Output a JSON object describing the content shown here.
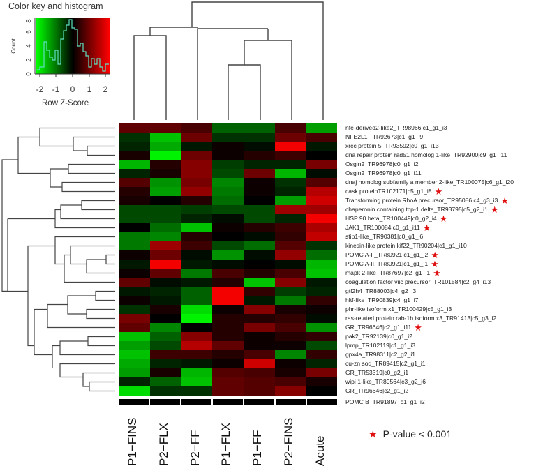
{
  "chart_data": {
    "type": "heatmap",
    "title": "",
    "color_key": {
      "title": "Color key and histogram",
      "xlabel": "Row Z-Score",
      "ylabel": "Count",
      "x_ticks": [
        "-2",
        "-1",
        "0",
        "1",
        "2"
      ],
      "y_ticks": [
        "0",
        "2",
        "4",
        "6",
        "8"
      ],
      "low_color": "#00ff00",
      "mid_color": "#000000",
      "high_color": "#ff0000",
      "range": [
        -2.2,
        2.2
      ]
    },
    "columns": [
      "P1−FINS",
      "P2−FLX",
      "P2−FF",
      "P1−FLX",
      "P1−FF",
      "P2−FINS",
      "Acute"
    ],
    "rows": [
      {
        "label": "nfe-derived2-like2_TR98966|c1_g1_i3",
        "star": false,
        "z": [
          0.8,
          0.8,
          0.6,
          -0.8,
          -0.8,
          0.6,
          -1.3
        ]
      },
      {
        "label": "NFE2L1 _TR92673|c1_g1_i9",
        "star": false,
        "z": [
          -0.4,
          -1.6,
          0.9,
          -0.4,
          -0.4,
          0.9,
          0.6
        ]
      },
      {
        "label": "xrcc protein 5_TR93592|c0_g1_i13",
        "star": false,
        "z": [
          -0.3,
          -1.4,
          -0.2,
          0.1,
          -0.1,
          2.0,
          -0.2
        ]
      },
      {
        "label": "dna repair protein rad51 homolog 1-like_TR92900|c9_g1_i11",
        "star": false,
        "z": [
          0.2,
          -2.0,
          0.9,
          0.1,
          0.3,
          0.5,
          0.0
        ]
      },
      {
        "label": "Osgin2_TR96978|c0_g1_i2",
        "star": false,
        "z": [
          -1.5,
          0.3,
          1.1,
          -0.5,
          -0.3,
          -0.3,
          1.0
        ]
      },
      {
        "label": "Osgin2_TR96978|c0_g1_i11",
        "star": false,
        "z": [
          -0.3,
          0.2,
          1.1,
          -0.6,
          0.9,
          -1.5,
          -0.1
        ]
      },
      {
        "label": "dnaj homolog subfamily a member 2-like_TR100075|c6_g1_i20",
        "star": false,
        "z": [
          0.7,
          -1.2,
          1.0,
          -1.1,
          0.1,
          -0.4,
          0.7
        ]
      },
      {
        "label": "cask proteinTR102171|c5_g1_i8",
        "star": true,
        "z": [
          0.3,
          -1.3,
          1.2,
          -1.0,
          0.1,
          -0.3,
          1.5
        ]
      },
      {
        "label": "Transforming protein RhoA precursor_TR95086|c4_g3_i3",
        "star": true,
        "z": [
          0.2,
          0.0,
          0.3,
          -0.9,
          0.0,
          -1.3,
          1.7
        ]
      },
      {
        "label": "chaperonin containing tcp-1 delta_TR93795|c5_g2_i1",
        "star": true,
        "z": [
          -0.6,
          -0.6,
          -0.5,
          -0.6,
          -0.6,
          1.3,
          1.3
        ]
      },
      {
        "label": "HSP 90 beta_TR100449|c0_g2_i4",
        "star": true,
        "z": [
          -0.6,
          -0.6,
          -0.3,
          -0.1,
          -0.6,
          -0.3,
          2.0
        ]
      },
      {
        "label": "JAK1_TR100084|c0_g1_i11",
        "star": true,
        "z": [
          0.0,
          -0.9,
          -1.6,
          0.1,
          0.3,
          0.5,
          1.4
        ]
      },
      {
        "label": "stip1-like_TR90381|c0_g1_i6",
        "star": false,
        "z": [
          -1.0,
          -1.1,
          0.3,
          0.0,
          -0.1,
          0.4,
          1.6
        ]
      },
      {
        "label": "kinesin-like protein kif22_TR90204|c1_g1_i10",
        "star": false,
        "z": [
          -1.0,
          1.3,
          0.5,
          -0.6,
          -0.9,
          0.7,
          -0.4
        ]
      },
      {
        "label": "POMC A-I _TR80921|c1_g1_i2",
        "star": true,
        "z": [
          0.1,
          0.9,
          -0.1,
          -1.2,
          -0.1,
          1.2,
          -0.9
        ]
      },
      {
        "label": "POMC A-II, TR80921|c1_g1_i1",
        "star": true,
        "z": [
          -0.2,
          2.0,
          -0.2,
          -0.1,
          0.0,
          -0.1,
          -1.5
        ]
      },
      {
        "label": "mapk 2-like_TR87697|c2_g1_i1",
        "star": true,
        "z": [
          0.1,
          0.8,
          -1.0,
          0.6,
          0.3,
          0.6,
          -1.6
        ]
      },
      {
        "label": "coagulation factor viic precursor_TR101584|c2_g4_i13",
        "star": false,
        "z": [
          0.8,
          -0.1,
          -0.2,
          0.3,
          -1.6,
          1.1,
          -0.2
        ]
      },
      {
        "label": "gtf2h4_TR88003|c4_g2_i3",
        "star": false,
        "z": [
          -0.2,
          -0.3,
          -0.8,
          2.0,
          0.4,
          -0.5,
          -0.3
        ]
      },
      {
        "label": "hltf-like_TR90839|c4_g1_i7",
        "star": false,
        "z": [
          0.1,
          -0.2,
          -0.8,
          2.0,
          -0.2,
          -1.0,
          0.4
        ]
      },
      {
        "label": "phr-like isoform x1_TR100429|c5_g1_i3",
        "star": false,
        "z": [
          -0.4,
          0.2,
          -1.8,
          0.1,
          1.1,
          0.2,
          0.1
        ]
      },
      {
        "label": "ras-related protein rab-1b isoform x3_TR91413|c5_g3_i2",
        "star": false,
        "z": [
          1.0,
          0.0,
          -2.0,
          0.3,
          0.3,
          0.4,
          -0.1
        ]
      },
      {
        "label": "GR_TR96646|c2_g1_i11",
        "star": true,
        "z": [
          0.8,
          -1.1,
          0.0,
          0.3,
          1.0,
          0.6,
          -1.2
        ]
      },
      {
        "label": "pak2_TR92139|c0_g1_i2",
        "star": false,
        "z": [
          -1.6,
          -0.8,
          1.1,
          0.3,
          0.1,
          0.3,
          0.4
        ]
      },
      {
        "label": "lpmp_TR102119|c1_g1_i3",
        "star": false,
        "z": [
          -1.3,
          -0.6,
          1.5,
          0.8,
          0.1,
          0.1,
          -0.6
        ]
      },
      {
        "label": "gpx4a_TR98311|c2_g2_i1",
        "star": false,
        "z": [
          -1.6,
          0.5,
          0.5,
          0.3,
          0.6,
          -1.1,
          0.4
        ]
      },
      {
        "label": "cu-zn sod_TR89415|c2_g1_i1",
        "star": false,
        "z": [
          -1.4,
          -0.3,
          -0.2,
          0.1,
          1.7,
          0.1,
          -0.3
        ]
      },
      {
        "label": "GR_TR53319|c0_g2_i1",
        "star": false,
        "z": [
          -1.3,
          0.2,
          -1.5,
          0.7,
          0.6,
          0.2,
          1.0
        ]
      },
      {
        "label": "wipi 1-like_TR89564|c3_g2_i6",
        "star": false,
        "z": [
          -0.3,
          -0.8,
          -1.6,
          0.8,
          0.7,
          0.6,
          0.2
        ]
      },
      {
        "label": "GR_TR96646|c2_g1_i2",
        "star": false,
        "z": [
          -1.8,
          -0.4,
          -0.4,
          0.8,
          0.7,
          1.1,
          0.0
        ]
      }
    ],
    "sidebar_label": "POMC B_TR91897_c1_g1_i2",
    "legend": {
      "symbol": "★",
      "text": "P-value < 0.001",
      "color": "#e01010"
    },
    "column_dendrogram": true,
    "row_dendrogram": true
  }
}
